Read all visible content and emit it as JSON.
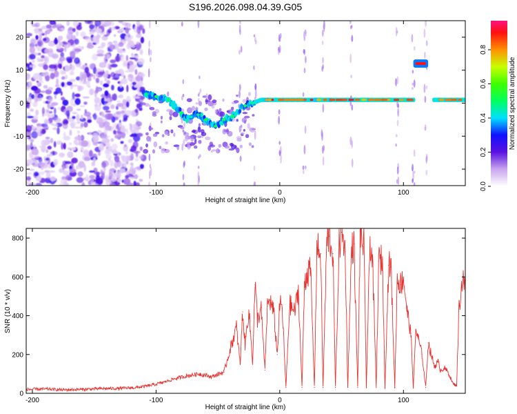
{
  "chart_data": [
    {
      "id": "spectrogram",
      "type": "heatmap",
      "title": "S196.2026.098.04.39.G05",
      "xlabel": "Height of straight line (km)",
      "ylabel": "Frequency (Hz)",
      "xlim": [
        -205,
        150
      ],
      "ylim": [
        -25,
        25
      ],
      "xticks": [
        -200,
        -100,
        0,
        100
      ],
      "yticks": [
        -20,
        -10,
        0,
        10,
        20
      ],
      "colorbar": {
        "label": "Normalized spectral amplitude",
        "range": [
          0.0,
          0.97
        ],
        "ticks": [
          0.0,
          0.2,
          0.4,
          0.6,
          0.8
        ],
        "stops": [
          {
            "v": 0.0,
            "color": "#ffffff"
          },
          {
            "v": 0.1,
            "color": "#c9a6f0"
          },
          {
            "v": 0.2,
            "color": "#5a12e0"
          },
          {
            "v": 0.3,
            "color": "#1010ff"
          },
          {
            "v": 0.4,
            "color": "#00e0ff"
          },
          {
            "v": 0.5,
            "color": "#00ff60"
          },
          {
            "v": 0.6,
            "color": "#40ff00"
          },
          {
            "v": 0.7,
            "color": "#c8ff00"
          },
          {
            "v": 0.8,
            "color": "#ff9000"
          },
          {
            "v": 0.9,
            "color": "#ff1010"
          },
          {
            "v": 0.97,
            "color": "#ff1080"
          }
        ]
      },
      "signal_track": [
        {
          "x": -110,
          "y": 3
        },
        {
          "x": -100,
          "y": 2
        },
        {
          "x": -90,
          "y": 1
        },
        {
          "x": -82,
          "y": -2
        },
        {
          "x": -75,
          "y": -5
        },
        {
          "x": -68,
          "y": -3
        },
        {
          "x": -60,
          "y": -5
        },
        {
          "x": -52,
          "y": -7
        },
        {
          "x": -45,
          "y": -5
        },
        {
          "x": -38,
          "y": -4
        },
        {
          "x": -30,
          "y": -1
        },
        {
          "x": -22,
          "y": 0
        },
        {
          "x": -15,
          "y": 1
        },
        {
          "x": 0,
          "y": 1
        },
        {
          "x": 20,
          "y": 1
        },
        {
          "x": 50,
          "y": 1
        },
        {
          "x": 80,
          "y": 1
        },
        {
          "x": 108,
          "y": 1
        },
        {
          "x": 125,
          "y": 1
        },
        {
          "x": 150,
          "y": 1
        }
      ],
      "secondary_signal": {
        "x_range": [
          108,
          120
        ],
        "y": 12
      },
      "noise_region": {
        "x_range": [
          -205,
          -110
        ]
      }
    },
    {
      "id": "snr",
      "type": "line",
      "xlabel": "Height of straight line (km)",
      "ylabel": "SNR (10 * v/v)",
      "xlim": [
        -205,
        150
      ],
      "ylim": [
        0,
        850
      ],
      "xticks": [
        -200,
        -100,
        0,
        100
      ],
      "yticks": [
        0,
        200,
        400,
        600,
        800
      ],
      "series": [
        {
          "name": "SNR",
          "color": "#e8312f",
          "x": [
            -205,
            -190,
            -175,
            -160,
            -145,
            -130,
            -115,
            -105,
            -95,
            -85,
            -75,
            -65,
            -55,
            -45,
            -40,
            -35,
            -32,
            -30,
            -28,
            -25,
            -22,
            -20,
            -18,
            -15,
            -12,
            -10,
            -8,
            -5,
            -2,
            0,
            2,
            5,
            8,
            12,
            15,
            18,
            20,
            22,
            25,
            28,
            30,
            33,
            35,
            38,
            40,
            43,
            45,
            48,
            50,
            53,
            55,
            58,
            60,
            63,
            65,
            68,
            70,
            73,
            75,
            78,
            80,
            83,
            85,
            88,
            90,
            93,
            95,
            98,
            100,
            103,
            106,
            108,
            110,
            112,
            115,
            118,
            120,
            122,
            125,
            128,
            130,
            133,
            136,
            140,
            143,
            145,
            148,
            150
          ],
          "y": [
            20,
            22,
            18,
            20,
            24,
            25,
            30,
            40,
            55,
            75,
            90,
            100,
            85,
            110,
            230,
            340,
            150,
            420,
            250,
            430,
            160,
            560,
            380,
            430,
            120,
            450,
            480,
            420,
            200,
            460,
            440,
            30,
            460,
            420,
            530,
            30,
            570,
            620,
            630,
            30,
            750,
            720,
            30,
            780,
            810,
            720,
            30,
            760,
            830,
            730,
            30,
            740,
            770,
            30,
            800,
            770,
            30,
            790,
            680,
            30,
            680,
            690,
            30,
            660,
            650,
            30,
            590,
            560,
            600,
            420,
            310,
            30,
            330,
            280,
            200,
            30,
            260,
            210,
            140,
            160,
            120,
            130,
            110,
            50,
            40,
            450,
            600,
            520
          ]
        }
      ]
    }
  ]
}
